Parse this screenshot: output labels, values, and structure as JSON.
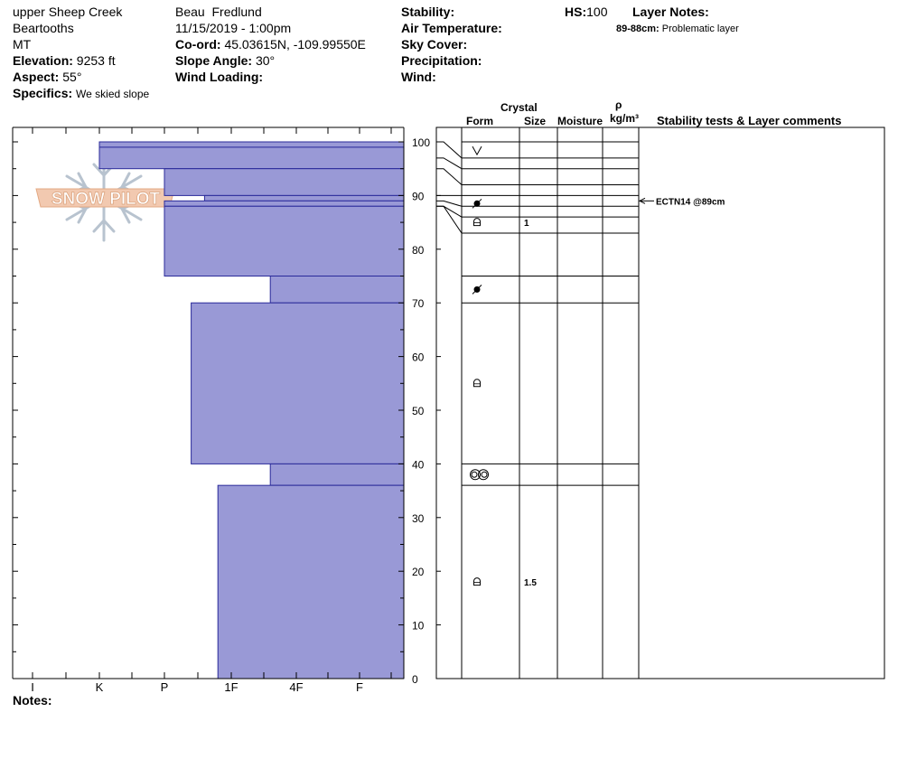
{
  "header": {
    "location_name": "upper Sheep Creek",
    "range": "Beartooths",
    "state": "MT",
    "elevation_label": "Elevation:",
    "elevation_value": "9253 ft",
    "aspect_label": "Aspect:",
    "aspect_value": "55°",
    "specifics_label": "Specifics:",
    "specifics_value": "We skied slope",
    "observer": "Beau  Fredlund",
    "datetime": "11/15/2019 - 1:00pm",
    "coord_label": "Co-ord:",
    "coord_value": "45.03615N, -109.99550E",
    "slope_label": "Slope Angle:",
    "slope_value": "30°",
    "wind_loading_label": "Wind Loading:",
    "stability_label": "Stability:",
    "air_temp_label": "Air Temperature:",
    "sky_cover_label": "Sky Cover:",
    "precip_label": "Precipitation:",
    "wind_label": "Wind:",
    "hs_label": "HS:",
    "hs_value": "100",
    "layer_notes_label": "Layer Notes:",
    "layer_note_range": "89-88cm:",
    "layer_note_text": "Problematic layer"
  },
  "logo_text": "SNOW PILOT",
  "notes_label": "Notes:",
  "columns": {
    "crystal": "Crystal",
    "form": "Form",
    "size": "Size",
    "moisture": "Moisture",
    "rho": "ρ",
    "density_unit": "kg/m³",
    "stability": "Stability tests & Layer comments"
  },
  "chart_data": {
    "type": "snow_profile",
    "y_axis": {
      "label": "",
      "min": 0,
      "max": 100,
      "ticks": [
        0,
        10,
        20,
        30,
        40,
        50,
        60,
        70,
        80,
        90,
        100
      ]
    },
    "hardness_axis": {
      "labels": [
        "I",
        "K",
        "P",
        "1F",
        "4F",
        "F"
      ]
    },
    "hardness_layers": [
      {
        "top": 100,
        "bottom": 99,
        "hardness": 1.0
      },
      {
        "top": 99,
        "bottom": 95,
        "hardness": 1.0
      },
      {
        "top": 95,
        "bottom": 90,
        "hardness": 2.0
      },
      {
        "top": 90,
        "bottom": 89,
        "hardness": 2.6
      },
      {
        "top": 89,
        "bottom": 88,
        "hardness": 2.0
      },
      {
        "top": 88,
        "bottom": 75,
        "hardness": 2.0
      },
      {
        "top": 75,
        "bottom": 70,
        "hardness": 3.6
      },
      {
        "top": 70,
        "bottom": 40,
        "hardness": 2.4
      },
      {
        "top": 40,
        "bottom": 36,
        "hardness": 3.6
      },
      {
        "top": 36,
        "bottom": 0,
        "hardness": 2.8
      }
    ],
    "layer_boundaries": [
      100,
      97,
      95,
      92,
      90,
      89,
      88,
      86,
      83,
      75,
      70,
      40,
      36,
      0
    ],
    "table_lines": [
      100,
      97,
      95,
      92,
      90,
      88,
      86,
      83,
      75,
      70,
      40,
      36
    ],
    "crystal_forms": [
      {
        "depth": 98.3,
        "symbol": "surface-hoar"
      },
      {
        "depth": 88.5,
        "symbol": "melt-forms"
      },
      {
        "depth": 85,
        "symbol": "faceted",
        "size": "1"
      },
      {
        "depth": 72.5,
        "symbol": "melt-forms"
      },
      {
        "depth": 55,
        "symbol": "faceted"
      },
      {
        "depth": 38,
        "symbol": "depth-hoar"
      },
      {
        "depth": 18,
        "symbol": "faceted",
        "size": "1.5"
      }
    ],
    "stability_tests": [
      {
        "depth": 89,
        "text": "ECTN14 @89cm"
      }
    ]
  }
}
